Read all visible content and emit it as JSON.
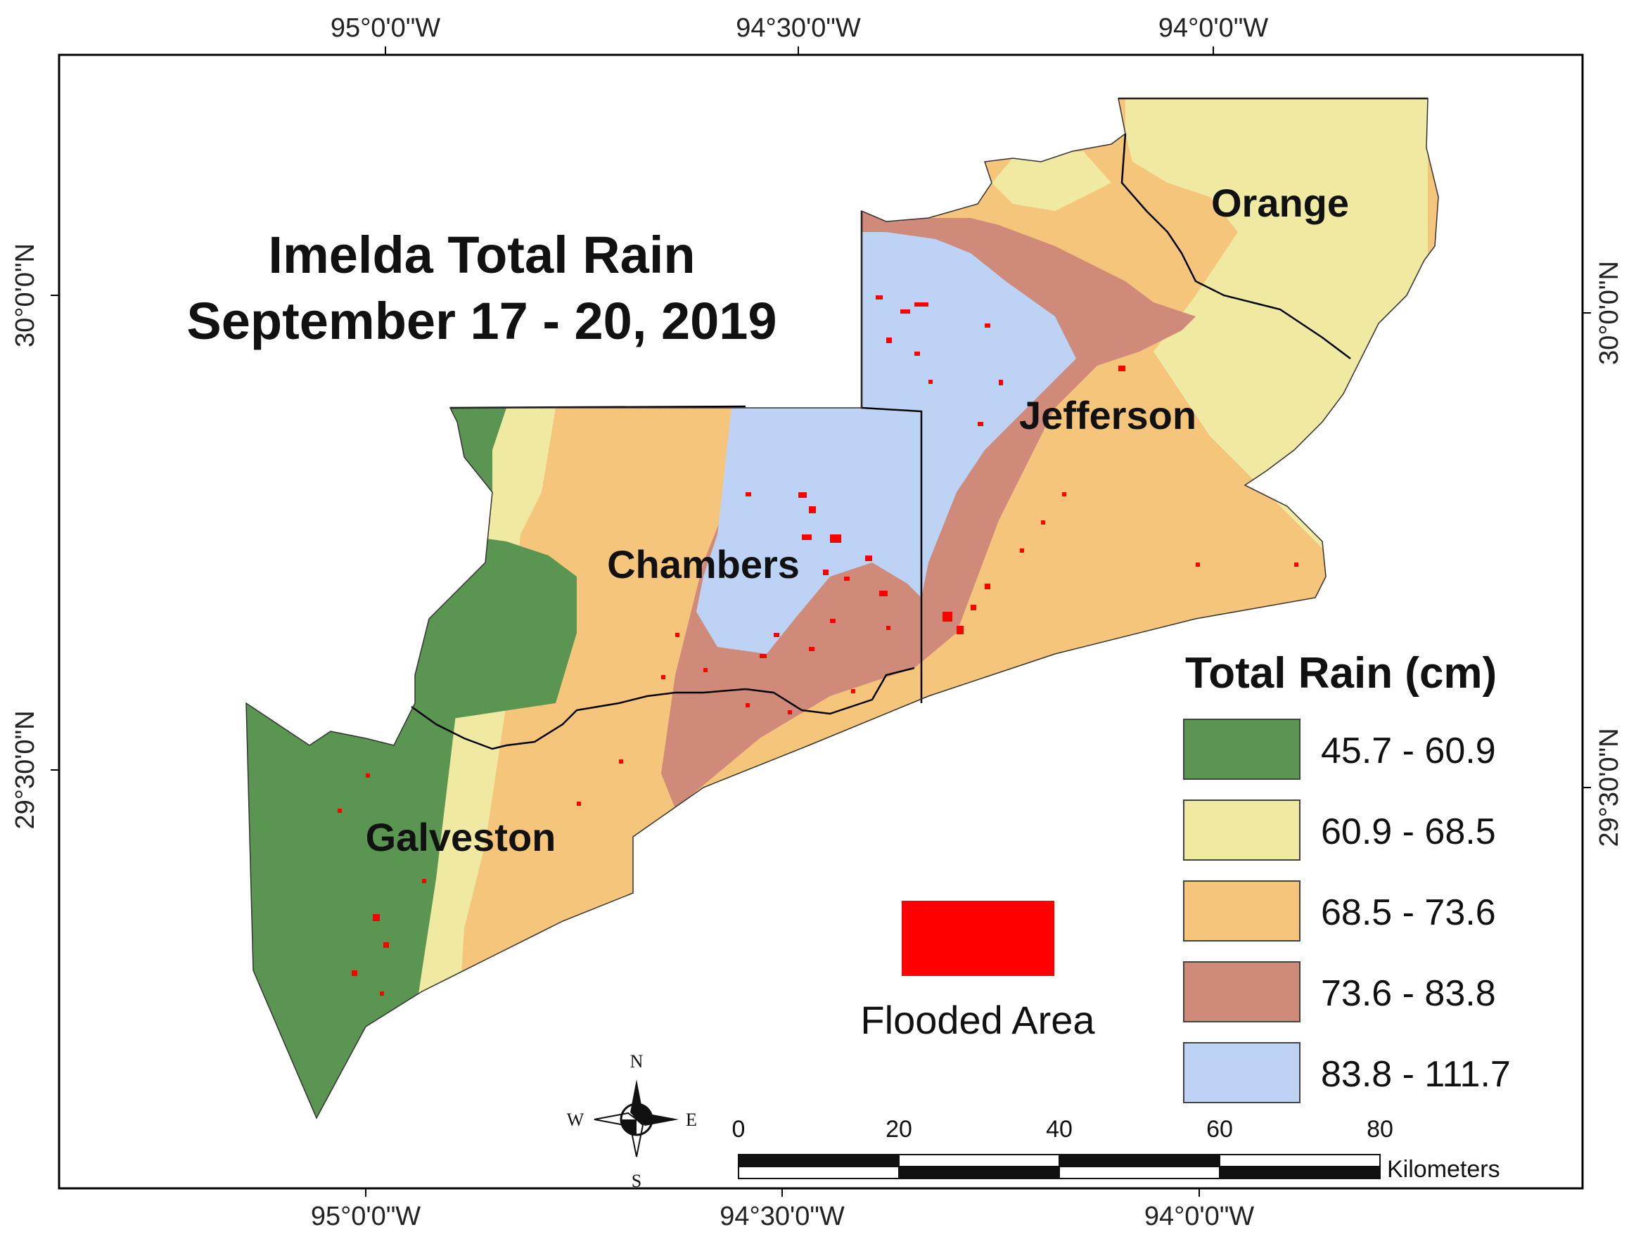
{
  "title": {
    "line1": "Imelda Total Rain",
    "line2": "September 17 - 20, 2019"
  },
  "axes": {
    "top_ticks": [
      "95°0'0\"W",
      "94°30'0\"W",
      "94°0'0\"W"
    ],
    "bottom_ticks": [
      "95°0'0\"W",
      "94°30'0\"W",
      "94°0'0\"W"
    ],
    "left_ticks": [
      "30°0'0\"N",
      "29°30'0\"N"
    ],
    "right_ticks": [
      "30°0'0\"N",
      "29°30'0\"N"
    ]
  },
  "counties": {
    "orange": "Orange",
    "jefferson": "Jefferson",
    "chambers": "Chambers",
    "galveston": "Galveston"
  },
  "legend": {
    "title": "Total Rain (cm)",
    "classes": [
      {
        "label": "45.7 - 60.9",
        "color": "#5a9651"
      },
      {
        "label": "60.9 - 68.5",
        "color": "#efe9a2"
      },
      {
        "label": "68.5 - 73.6",
        "color": "#f5c57c"
      },
      {
        "label": "73.6 - 83.8",
        "color": "#cf8a79"
      },
      {
        "label": "83.8 - 111.7",
        "color": "#bcd3f6"
      }
    ]
  },
  "flooded": {
    "label": "Flooded Area",
    "color": "#ff0000"
  },
  "compass": {
    "n": "N",
    "s": "S",
    "e": "E",
    "w": "W"
  },
  "scale_bar": {
    "ticks": [
      "0",
      "20",
      "40",
      "60",
      "80"
    ],
    "unit": "Kilometers"
  }
}
